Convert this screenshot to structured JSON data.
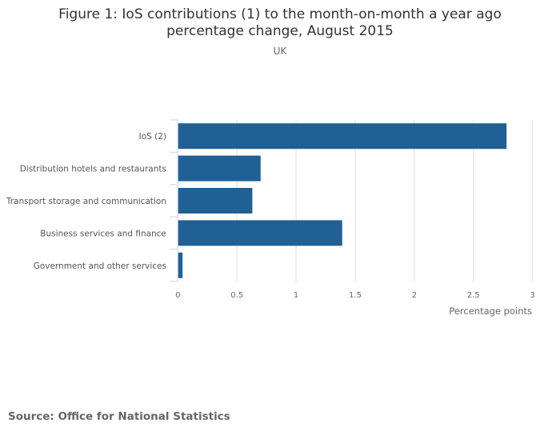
{
  "chart_data": {
    "type": "bar",
    "orientation": "horizontal",
    "title": "Figure 1: IoS contributions (1) to the month-on-month a year ago percentage change, August 2015",
    "title_lines": [
      "Figure 1: IoS contributions (1) to the month-on-month a year ago",
      "percentage change, August 2015"
    ],
    "subtitle": "UK",
    "categories": [
      "IoS (2)",
      "Distribution hotels and restaurants",
      "Transport storage and communication",
      "Business services and finance",
      "Government and other services"
    ],
    "values": [
      2.78,
      0.7,
      0.63,
      1.39,
      0.04
    ],
    "xlabel": "Percentage points",
    "ylabel": "",
    "xlim": [
      0,
      3
    ],
    "xticks": [
      "0",
      "0.5",
      "1",
      "1.5",
      "2",
      "2.5",
      "3"
    ],
    "grid": true,
    "bar_color": "#206095"
  },
  "source": "Source: Office for National Statistics"
}
